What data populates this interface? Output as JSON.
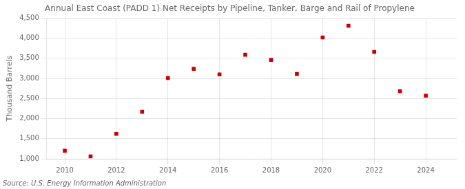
{
  "chart_data": {
    "type": "scatter",
    "title": "Annual East Coast (PADD 1) Net Receipts by Pipeline, Tanker, Barge and Rail of Propylene",
    "ylabel": "Thousand Barrels",
    "source": "Source: U.S. Energy Information Administration",
    "x": [
      2010,
      2011,
      2012,
      2013,
      2014,
      2015,
      2016,
      2017,
      2018,
      2019,
      2020,
      2021,
      2022,
      2023,
      2024
    ],
    "values": [
      1200,
      1060,
      1620,
      2170,
      3010,
      3240,
      3100,
      3590,
      3460,
      3110,
      4020,
      4310,
      3660,
      2680,
      2570
    ],
    "color": "#cc0000",
    "marker": "square",
    "xlim": [
      2009.3,
      2025.2
    ],
    "xticks": [
      2010,
      2012,
      2014,
      2016,
      2018,
      2020,
      2022,
      2024
    ],
    "ylim": [
      1000,
      4500
    ],
    "yticks": [
      {
        "value": 1000,
        "label": "1,000"
      },
      {
        "value": 1500,
        "label": "1,500"
      },
      {
        "value": 2000,
        "label": "2,000"
      },
      {
        "value": 2500,
        "label": "2,500"
      },
      {
        "value": 3000,
        "label": "3,000"
      },
      {
        "value": 3500,
        "label": "3,500"
      },
      {
        "value": 4000,
        "label": "4,000"
      },
      {
        "value": 4500,
        "label": "4,500"
      }
    ],
    "grid": true
  }
}
